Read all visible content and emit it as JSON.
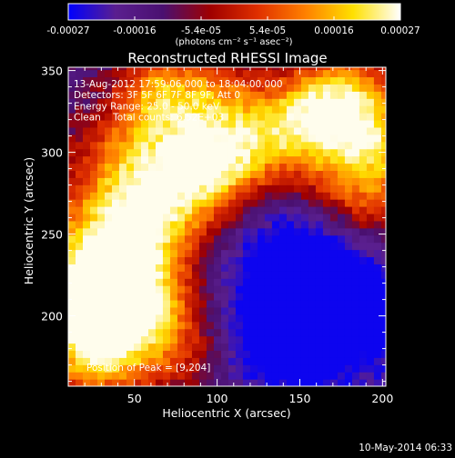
{
  "chart_data": {
    "type": "heatmap",
    "title": "Reconstructed RHESSI Image",
    "xlabel": "Heliocentric X (arcsec)",
    "ylabel": "Heliocentric Y (arcsec)",
    "xlim": [
      10,
      202
    ],
    "ylim": [
      157,
      352
    ],
    "x_ticks": [
      50,
      100,
      150,
      200
    ],
    "y_ticks": [
      200,
      250,
      300,
      350
    ],
    "colorbar": {
      "min": -0.00027,
      "max": 0.00027,
      "ticks": [
        "-0.00027",
        "-0.00016",
        "-5.4e-05",
        "5.4e-05",
        "0.00016",
        "0.00027"
      ],
      "unit_text": "(photons cm⁻² s⁻¹ asec⁻²)",
      "colormap": [
        "#0000ff",
        "#5a1f8f",
        "#4a1070",
        "#a00000",
        "#e03000",
        "#ff8000",
        "#ffe000",
        "#ffffff"
      ]
    },
    "info_lines": [
      "13-Aug-2012 17:59:06.000 to 18:04:00.000",
      "Detectors: 3F 5F 6F 7F 8F 9F, Att 0",
      "Energy Range: 25.0 - 50.0 keV",
      "Clean    Total counts: 6.52E+03"
    ],
    "peak_text": "Position of Peak = [9,204]",
    "peak_position": [
      9,
      204
    ],
    "date_stamp": "10-May-2014 06:33"
  }
}
